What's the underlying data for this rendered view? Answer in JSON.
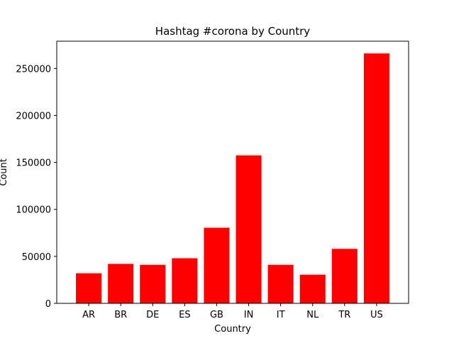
{
  "chart_data": {
    "type": "bar",
    "title": "Hashtag #corona by Country",
    "xlabel": "Country",
    "ylabel": "Count",
    "categories": [
      "AR",
      "BR",
      "DE",
      "ES",
      "GB",
      "IN",
      "IT",
      "NL",
      "TR",
      "US"
    ],
    "values": [
      32000,
      42000,
      41000,
      48000,
      80500,
      157500,
      41000,
      30500,
      58000,
      266000
    ],
    "ylim": [
      0,
      279000
    ],
    "yticks": [
      0,
      50000,
      100000,
      150000,
      200000,
      250000
    ],
    "bar_color": "#ff0000",
    "grid": false,
    "legend": false
  }
}
